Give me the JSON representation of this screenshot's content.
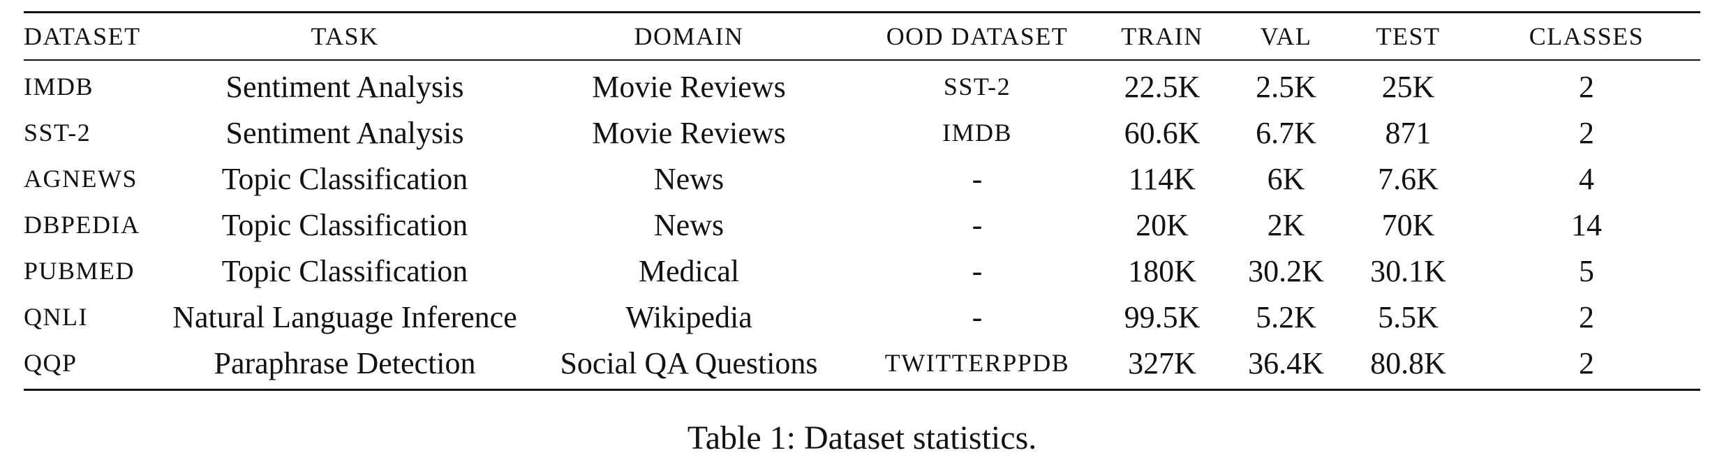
{
  "table": {
    "headers": [
      "DATASET",
      "TASK",
      "DOMAIN",
      "OOD DATASET",
      "TRAIN",
      "VAL",
      "TEST",
      "CLASSES"
    ],
    "rows": [
      {
        "dataset": "IMDB",
        "task": "Sentiment Analysis",
        "domain": "Movie Reviews",
        "ood": "SST-2",
        "train": "22.5K",
        "val": "2.5K",
        "test": "25K",
        "classes": "2"
      },
      {
        "dataset": "SST-2",
        "task": "Sentiment Analysis",
        "domain": "Movie Reviews",
        "ood": "IMDB",
        "train": "60.6K",
        "val": "6.7K",
        "test": "871",
        "classes": "2"
      },
      {
        "dataset": "AGNEWS",
        "task": "Topic Classification",
        "domain": "News",
        "ood": "-",
        "train": "114K",
        "val": "6K",
        "test": "7.6K",
        "classes": "4"
      },
      {
        "dataset": "DBPEDIA",
        "task": "Topic Classification",
        "domain": "News",
        "ood": "-",
        "train": "20K",
        "val": "2K",
        "test": "70K",
        "classes": "14"
      },
      {
        "dataset": "PUBMED",
        "task": "Topic Classification",
        "domain": "Medical",
        "ood": "-",
        "train": "180K",
        "val": "30.2K",
        "test": "30.1K",
        "classes": "5"
      },
      {
        "dataset": "QNLI",
        "task": "Natural Language Inference",
        "domain": "Wikipedia",
        "ood": "-",
        "train": "99.5K",
        "val": "5.2K",
        "test": "5.5K",
        "classes": "2"
      },
      {
        "dataset": "QQP",
        "task": "Paraphrase Detection",
        "domain": "Social QA Questions",
        "ood": "TWITTERPPDB",
        "train": "327K",
        "val": "36.4K",
        "test": "80.8K",
        "classes": "2"
      }
    ]
  },
  "caption": "Table 1: Dataset statistics."
}
